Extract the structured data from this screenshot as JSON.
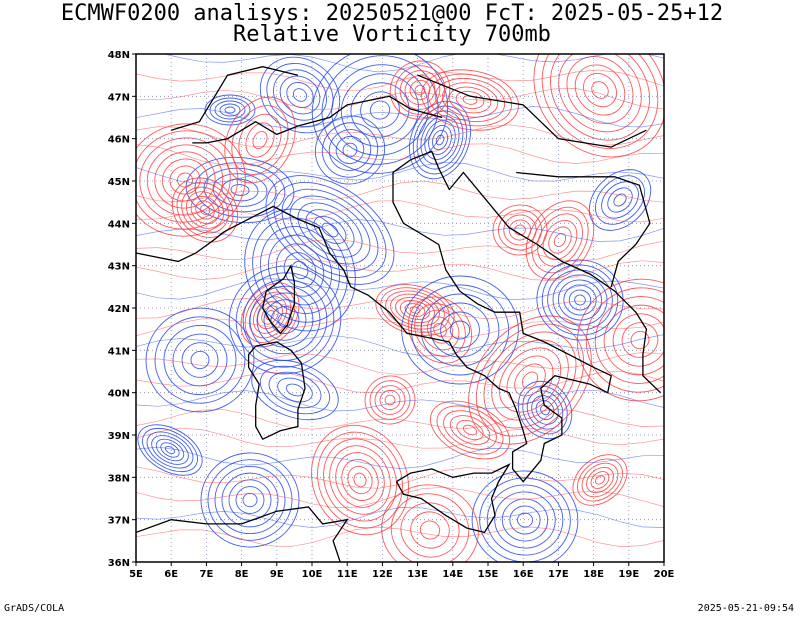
{
  "header": {
    "line1": "ECMWF0200 analisys: 20250521@00 FcT: 2025-05-25+12",
    "line2": "Relative Vorticity 700mb"
  },
  "map": {
    "lon_range": [
      5,
      20
    ],
    "lat_range": [
      36,
      48
    ],
    "x_ticks": [
      "5E",
      "6E",
      "7E",
      "8E",
      "9E",
      "10E",
      "11E",
      "12E",
      "13E",
      "14E",
      "15E",
      "16E",
      "17E",
      "18E",
      "19E",
      "20E"
    ],
    "y_ticks": [
      "36N",
      "37N",
      "38N",
      "39N",
      "40N",
      "41N",
      "42N",
      "43N",
      "44N",
      "45N",
      "46N",
      "47N",
      "48N"
    ],
    "grid": true,
    "colors": {
      "positive": "#ff3b3b",
      "negative": "#2244ee",
      "coast": "#000000",
      "grid": "#8888aa"
    }
  },
  "footer": {
    "left": "GrADS/COLA",
    "right": "2025-05-21-09:54"
  }
}
